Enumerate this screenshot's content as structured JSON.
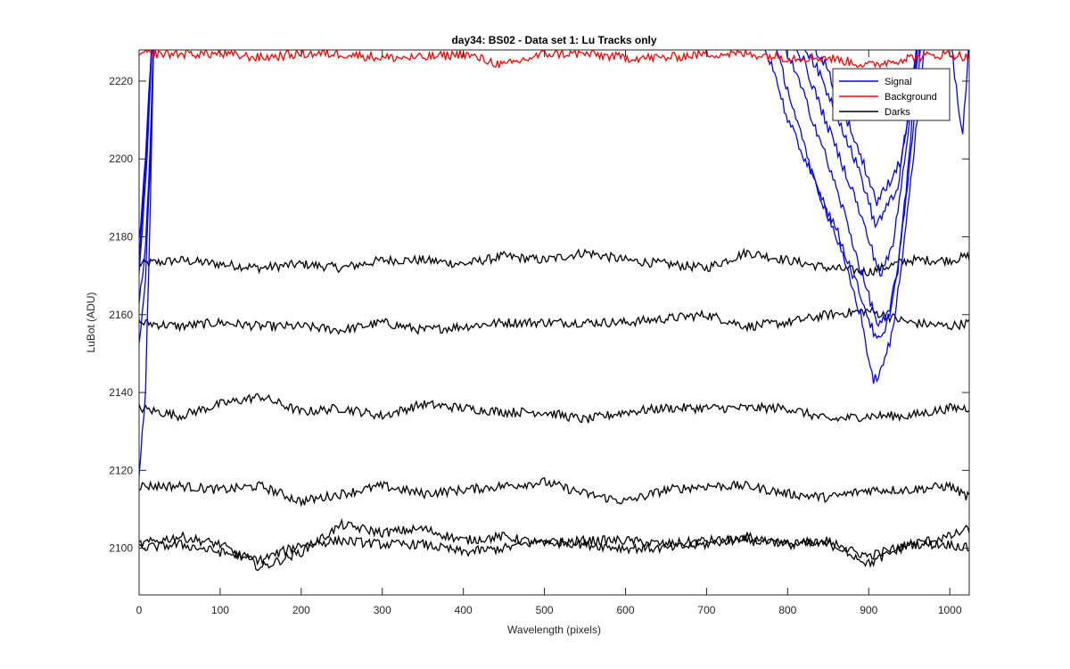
{
  "chart_data": {
    "type": "line",
    "title": "day34: BS02 - Data set 1: Lu Tracks only",
    "xlabel": "Wavelength (pixels)",
    "ylabel": "LuBot (ADU)",
    "xlim": [
      0,
      1024
    ],
    "ylim": [
      2088,
      2228
    ],
    "x_ticks": [
      0,
      100,
      200,
      300,
      400,
      500,
      600,
      700,
      800,
      900,
      1000
    ],
    "y_ticks": [
      2100,
      2120,
      2140,
      2160,
      2180,
      2200,
      2220
    ],
    "grid": false,
    "legend_position": "top-right",
    "legend": [
      "Signal",
      "Background",
      "Darks"
    ],
    "colors": {
      "Signal": "#0000ff",
      "Background": "#ff0000",
      "Darks": "#000000",
      "axes": "#262626"
    },
    "series": [
      {
        "name": "Background",
        "color": "#ff0000",
        "x": [
          0,
          50,
          100,
          150,
          200,
          250,
          300,
          350,
          400,
          450,
          500,
          550,
          600,
          650,
          700,
          750,
          800,
          850,
          900,
          950,
          1000,
          1024
        ],
        "values": [
          2227,
          2227,
          2227,
          2226,
          2227,
          2227,
          2226,
          2226,
          2227,
          2224,
          2227,
          2227,
          2226,
          2226,
          2227,
          2227,
          2226,
          2226,
          2224,
          2226,
          2227,
          2226
        ]
      },
      {
        "name": "Signal",
        "color": "#0000ff",
        "x": [
          0,
          8,
          14,
          18,
          760,
          780,
          800,
          830,
          860,
          890,
          905,
          915,
          930,
          950,
          970,
          1000,
          1010,
          1016,
          1022,
          1024
        ],
        "values": [
          2152,
          2170,
          2200,
          2232,
          2232,
          2225,
          2210,
          2196,
          2180,
          2160,
          2143,
          2145,
          2156,
          2190,
          2232,
          2232,
          2215,
          2206,
          2225,
          2232
        ]
      },
      {
        "name": "Signal",
        "color": "#0000ff",
        "x": [
          0,
          8,
          14,
          18,
          780,
          800,
          830,
          860,
          890,
          910,
          920,
          935,
          950,
          960,
          1024
        ],
        "values": [
          2162,
          2178,
          2205,
          2232,
          2232,
          2218,
          2196,
          2182,
          2165,
          2153,
          2155,
          2170,
          2200,
          2232,
          2232
        ]
      },
      {
        "name": "Signal",
        "color": "#0000ff",
        "x": [
          0,
          8,
          14,
          18,
          790,
          810,
          840,
          870,
          895,
          912,
          925,
          940,
          955,
          965,
          1024
        ],
        "values": [
          2118,
          2140,
          2190,
          2232,
          2232,
          2222,
          2205,
          2186,
          2168,
          2157,
          2160,
          2178,
          2208,
          2232,
          2232
        ]
      },
      {
        "name": "Signal",
        "color": "#0000ff",
        "x": [
          0,
          10,
          16,
          800,
          820,
          850,
          880,
          905,
          915,
          930,
          948,
          960,
          1024
        ],
        "values": [
          2170,
          2200,
          2232,
          2232,
          2225,
          2208,
          2192,
          2176,
          2170,
          2178,
          2206,
          2232,
          2232
        ]
      },
      {
        "name": "Signal",
        "color": "#0000ff",
        "x": [
          0,
          10,
          16,
          810,
          830,
          860,
          890,
          908,
          918,
          935,
          950,
          962,
          1024
        ],
        "values": [
          2175,
          2205,
          2232,
          2232,
          2226,
          2212,
          2196,
          2183,
          2186,
          2192,
          2212,
          2232,
          2232
        ]
      },
      {
        "name": "Signal",
        "color": "#0000ff",
        "x": [
          0,
          10,
          16,
          820,
          845,
          870,
          895,
          910,
          920,
          940,
          955,
          965,
          1024
        ],
        "values": [
          2178,
          2208,
          2232,
          2232,
          2225,
          2212,
          2198,
          2189,
          2192,
          2200,
          2218,
          2232,
          2232
        ]
      },
      {
        "name": "Darks",
        "color": "#000000",
        "x": [
          0,
          50,
          100,
          150,
          200,
          250,
          300,
          350,
          400,
          450,
          500,
          550,
          600,
          650,
          700,
          750,
          800,
          850,
          900,
          950,
          1000,
          1024
        ],
        "values": [
          2173,
          2174,
          2173,
          2172,
          2173,
          2172,
          2174,
          2174,
          2173,
          2175,
          2174,
          2176,
          2174,
          2173,
          2172,
          2176,
          2174,
          2172,
          2171,
          2174,
          2174,
          2175
        ]
      },
      {
        "name": "Darks",
        "color": "#000000",
        "x": [
          0,
          50,
          100,
          150,
          200,
          250,
          300,
          350,
          400,
          450,
          500,
          550,
          600,
          650,
          700,
          750,
          800,
          850,
          900,
          950,
          1000,
          1024
        ],
        "values": [
          2158,
          2157,
          2158,
          2157,
          2157,
          2156,
          2158,
          2156,
          2157,
          2158,
          2158,
          2158,
          2158,
          2159,
          2160,
          2157,
          2158,
          2160,
          2161,
          2158,
          2157,
          2158
        ]
      },
      {
        "name": "Darks",
        "color": "#000000",
        "x": [
          0,
          50,
          100,
          150,
          200,
          250,
          300,
          350,
          400,
          450,
          500,
          550,
          600,
          650,
          700,
          750,
          800,
          850,
          900,
          950,
          1000,
          1024
        ],
        "values": [
          2136,
          2134,
          2137,
          2139,
          2135,
          2136,
          2134,
          2137,
          2136,
          2135,
          2135,
          2133,
          2135,
          2136,
          2136,
          2136,
          2136,
          2133,
          2134,
          2134,
          2136,
          2136
        ]
      },
      {
        "name": "Darks",
        "color": "#000000",
        "x": [
          0,
          50,
          100,
          150,
          200,
          250,
          300,
          350,
          400,
          450,
          500,
          550,
          600,
          650,
          700,
          750,
          800,
          850,
          900,
          950,
          1000,
          1024
        ],
        "values": [
          2116,
          2116,
          2115,
          2116,
          2112,
          2114,
          2116,
          2114,
          2115,
          2116,
          2117,
          2114,
          2112,
          2115,
          2116,
          2116,
          2114,
          2113,
          2115,
          2115,
          2116,
          2113
        ]
      },
      {
        "name": "Darks",
        "color": "#000000",
        "x": [
          0,
          50,
          100,
          150,
          200,
          250,
          300,
          350,
          400,
          450,
          500,
          550,
          600,
          650,
          700,
          750,
          800,
          850,
          900,
          950,
          1000,
          1024
        ],
        "values": [
          2101,
          2103,
          2101,
          2095,
          2099,
          2106,
          2104,
          2105,
          2102,
          2103,
          2101,
          2102,
          2102,
          2101,
          2102,
          2102,
          2101,
          2102,
          2096,
          2101,
          2103,
          2105
        ]
      },
      {
        "name": "Darks",
        "color": "#000000",
        "x": [
          0,
          50,
          100,
          150,
          200,
          250,
          300,
          350,
          400,
          450,
          500,
          550,
          600,
          650,
          700,
          750,
          800,
          850,
          900,
          950,
          1000,
          1024
        ],
        "values": [
          2100,
          2101,
          2099,
          2097,
          2101,
          2102,
          2101,
          2101,
          2099,
          2100,
          2102,
          2101,
          2100,
          2100,
          2101,
          2103,
          2101,
          2101,
          2098,
          2101,
          2101,
          2100
        ]
      }
    ]
  }
}
